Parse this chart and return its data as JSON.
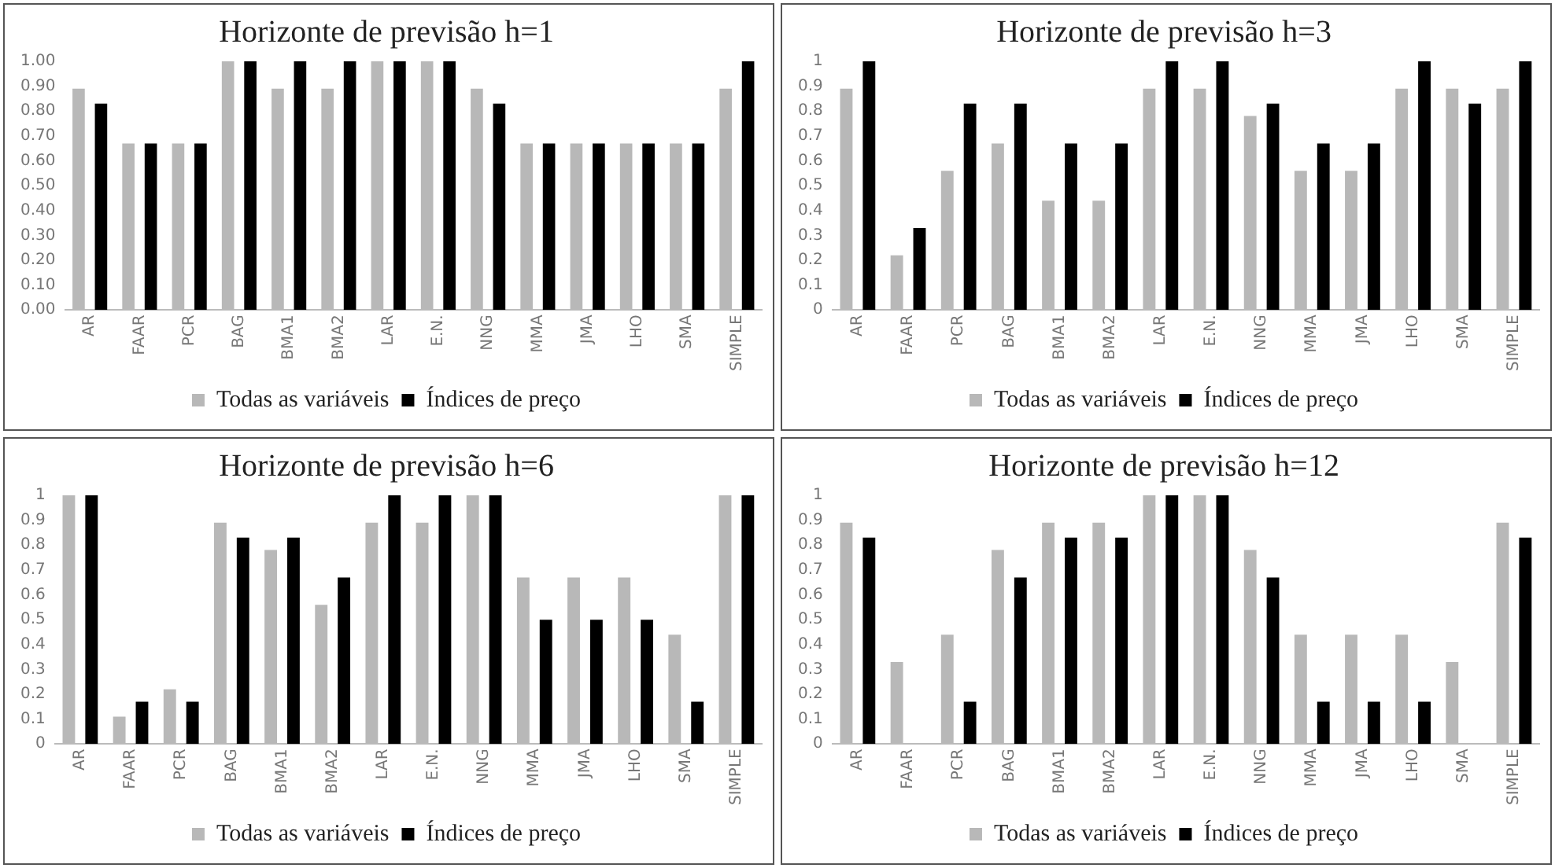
{
  "chart_data": [
    {
      "type": "bar",
      "title": "Horizonte de previsão h=1",
      "categories": [
        "AR",
        "FAAR",
        "PCR",
        "BAG",
        "BMA1",
        "BMA2",
        "LAR",
        "E.N.",
        "NNG",
        "MMA",
        "JMA",
        "LHO",
        "SMA",
        "SIMPLE"
      ],
      "series": [
        {
          "name": "Todas as variáveis",
          "color": "#b8b8b8",
          "values": [
            0.89,
            0.67,
            0.67,
            1,
            0.89,
            0.89,
            1,
            1,
            0.89,
            0.67,
            0.67,
            0.67,
            0.67,
            0.89
          ]
        },
        {
          "name": "Índices de preço",
          "color": "#000000",
          "values": [
            0.83,
            0.67,
            0.67,
            1,
            1,
            1,
            1,
            1,
            0.83,
            0.67,
            0.67,
            0.67,
            0.67,
            1
          ]
        }
      ],
      "ylim": [
        0,
        1
      ],
      "yticks": [
        {
          "value": 0,
          "label": "0.00"
        },
        {
          "value": 0.1,
          "label": "0.10"
        },
        {
          "value": 0.2,
          "label": "0.20"
        },
        {
          "value": 0.3,
          "label": "0.30"
        },
        {
          "value": 0.4,
          "label": "0.40"
        },
        {
          "value": 0.5,
          "label": "0.50"
        },
        {
          "value": 0.6,
          "label": "0.60"
        },
        {
          "value": 0.7,
          "label": "0.70"
        },
        {
          "value": 0.8,
          "label": "0.80"
        },
        {
          "value": 0.9,
          "label": "0.90"
        },
        {
          "value": 1,
          "label": "1.00"
        }
      ],
      "grid": false,
      "legend": "bottom"
    },
    {
      "type": "bar",
      "title": "Horizonte de previsão h=3",
      "categories": [
        "AR",
        "FAAR",
        "PCR",
        "BAG",
        "BMA1",
        "BMA2",
        "LAR",
        "E.N.",
        "NNG",
        "MMA",
        "JMA",
        "LHO",
        "SMA",
        "SIMPLE"
      ],
      "series": [
        {
          "name": "Todas as variáveis",
          "color": "#b8b8b8",
          "values": [
            0.89,
            0.22,
            0.56,
            0.67,
            0.44,
            0.44,
            0.89,
            0.89,
            0.78,
            0.56,
            0.56,
            0.89,
            0.89,
            0.89
          ]
        },
        {
          "name": "Índices de preço",
          "color": "#000000",
          "values": [
            1,
            0.33,
            0.83,
            0.83,
            0.67,
            0.67,
            1,
            1,
            0.83,
            0.67,
            0.67,
            1,
            0.83,
            1
          ]
        }
      ],
      "ylim": [
        0,
        1
      ],
      "yticks": [
        0,
        0.1,
        0.2,
        0.3,
        0.4,
        0.5,
        0.6,
        0.7,
        0.8,
        0.9,
        1
      ],
      "grid": false,
      "legend": "bottom"
    },
    {
      "type": "bar",
      "title": "Horizonte de previsão h=6",
      "categories": [
        "AR",
        "FAAR",
        "PCR",
        "BAG",
        "BMA1",
        "BMA2",
        "LAR",
        "E.N.",
        "NNG",
        "MMA",
        "JMA",
        "LHO",
        "SMA",
        "SIMPLE"
      ],
      "series": [
        {
          "name": "Todas as variáveis",
          "color": "#b8b8b8",
          "values": [
            1,
            0.11,
            0.22,
            0.89,
            0.78,
            0.56,
            0.89,
            0.89,
            1,
            0.67,
            0.67,
            0.67,
            0.44,
            1
          ]
        },
        {
          "name": "Índices de preço",
          "color": "#000000",
          "values": [
            1,
            0.17,
            0.17,
            0.83,
            0.83,
            0.67,
            1,
            1,
            1,
            0.5,
            0.5,
            0.5,
            0.17,
            1
          ]
        }
      ],
      "ylim": [
        0,
        1
      ],
      "yticks": [
        0,
        0.1,
        0.2,
        0.3,
        0.4,
        0.5,
        0.6,
        0.7,
        0.8,
        0.9,
        1
      ],
      "grid": false,
      "legend": "bottom"
    },
    {
      "type": "bar",
      "title": "Horizonte de previsão h=12",
      "categories": [
        "AR",
        "FAAR",
        "PCR",
        "BAG",
        "BMA1",
        "BMA2",
        "LAR",
        "E.N.",
        "NNG",
        "MMA",
        "JMA",
        "LHO",
        "SMA",
        "SIMPLE"
      ],
      "series": [
        {
          "name": "Todas as variáveis",
          "color": "#b8b8b8",
          "values": [
            0.89,
            0.33,
            0.44,
            0.78,
            0.89,
            0.89,
            1,
            1,
            0.78,
            0.44,
            0.44,
            0.44,
            0.33,
            0.89
          ]
        },
        {
          "name": "Índices de preço",
          "color": "#000000",
          "values": [
            0.83,
            0,
            0.17,
            0.67,
            0.83,
            0.83,
            1,
            1,
            0.67,
            0.17,
            0.17,
            0.17,
            0,
            0.83
          ]
        }
      ],
      "ylim": [
        0,
        1
      ],
      "yticks": [
        0,
        0.1,
        0.2,
        0.3,
        0.4,
        0.5,
        0.6,
        0.7,
        0.8,
        0.9,
        1
      ],
      "grid": false,
      "legend": "bottom"
    }
  ]
}
